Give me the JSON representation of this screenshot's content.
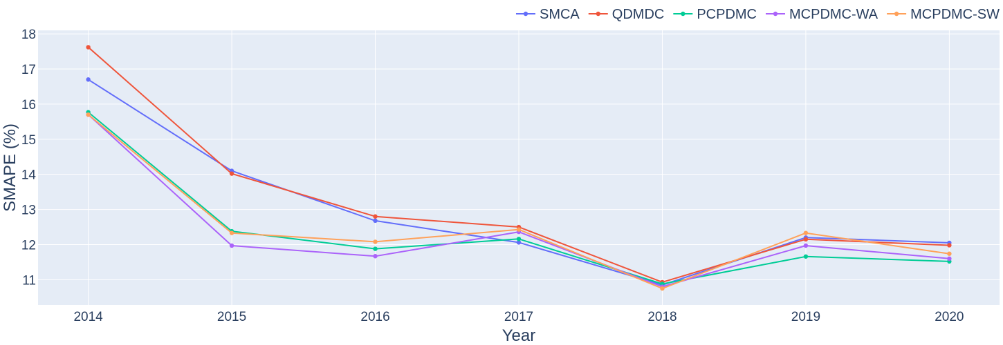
{
  "chart_data": {
    "type": "line",
    "xlabel": "Year",
    "ylabel": "SMAPE (%)",
    "x": [
      2014,
      2015,
      2016,
      2017,
      2018,
      2019,
      2020
    ],
    "x_tick_labels": [
      "2014",
      "2015",
      "2016",
      "2017",
      "2018",
      "2019",
      "2020"
    ],
    "xlim": [
      2013.65,
      2020.35
    ],
    "ylim": [
      10.28,
      18.1
    ],
    "y_ticks": [
      11,
      12,
      13,
      14,
      15,
      16,
      17,
      18
    ],
    "y_tick_labels": [
      "11",
      "12",
      "13",
      "14",
      "15",
      "16",
      "17",
      "18"
    ],
    "grid": true,
    "legend_position": "top-right",
    "plot_background": "#e5ecf6",
    "series": [
      {
        "name": "SMCA",
        "color": "#636efa",
        "values": [
          16.7,
          14.1,
          12.68,
          12.06,
          10.85,
          12.2,
          12.05
        ]
      },
      {
        "name": "QDMDC",
        "color": "#ef553b",
        "values": [
          17.62,
          14.02,
          12.8,
          12.5,
          10.93,
          12.15,
          11.98
        ]
      },
      {
        "name": "PCPDMC",
        "color": "#00cc96",
        "values": [
          15.77,
          12.38,
          11.88,
          12.16,
          10.88,
          11.66,
          11.52
        ]
      },
      {
        "name": "MCPDMC-WA",
        "color": "#ab63fa",
        "values": [
          15.7,
          11.97,
          11.67,
          12.36,
          10.8,
          11.97,
          11.6
        ]
      },
      {
        "name": "MCPDMC-SW",
        "color": "#ffa15a",
        "values": [
          15.7,
          12.33,
          12.08,
          12.43,
          10.75,
          12.33,
          11.74
        ]
      }
    ]
  }
}
